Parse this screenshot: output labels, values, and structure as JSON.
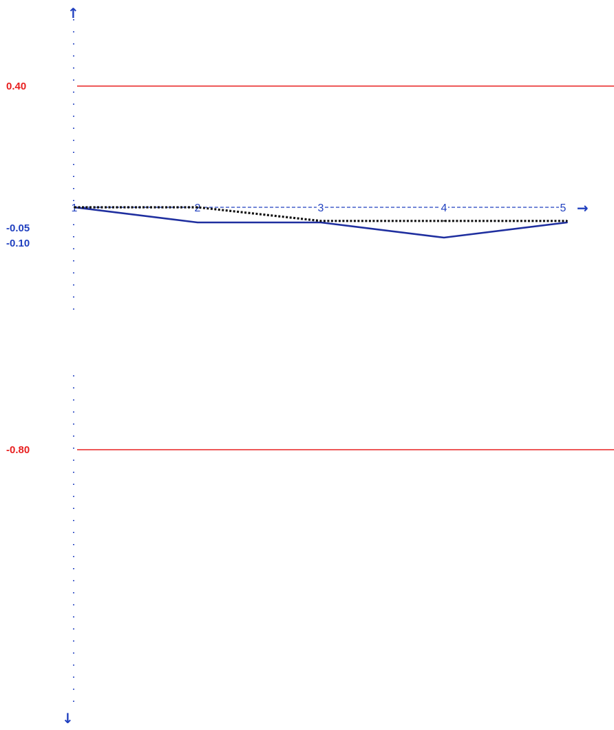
{
  "chart_data": {
    "type": "line",
    "title": "",
    "xlabel": "",
    "ylabel": "",
    "categories": [
      "1",
      "2",
      "3",
      "4",
      "5"
    ],
    "x": [
      1,
      2,
      3,
      4,
      5
    ],
    "series": [
      {
        "style": "solid",
        "color": "#1f2f9f",
        "values": [
          0.0,
          -0.05,
          -0.05,
          -0.1,
          -0.05
        ]
      },
      {
        "style": "dotted",
        "color": "#111111",
        "values": [
          0.0,
          0.0,
          -0.045,
          -0.045,
          -0.045
        ]
      }
    ],
    "reference_lines": [
      {
        "value": 0.4,
        "label": "0.40",
        "color": "#e82020"
      },
      {
        "value": -0.8,
        "label": "-0.80",
        "color": "#e82020"
      }
    ],
    "y_tick_labels": [
      {
        "value": -0.05,
        "label": "-0.05"
      },
      {
        "value": -0.1,
        "label": "-0.10"
      }
    ],
    "baseline": {
      "value": 0,
      "style": "dashed",
      "color": "#1f3fbf"
    },
    "axis_color": "#1f3fbf",
    "ylim": [
      -1.3,
      0.6
    ],
    "grid": false
  },
  "arrows": {
    "up": "↑",
    "down": "↓",
    "right": "→"
  }
}
